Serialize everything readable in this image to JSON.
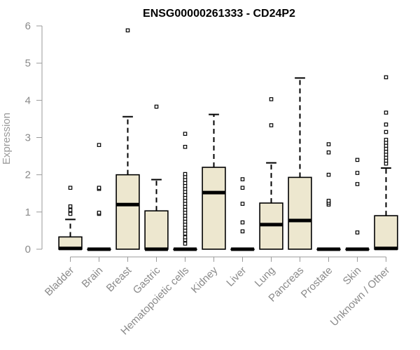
{
  "chart_data": {
    "type": "boxplot",
    "title": "ENSG00000261333 - CD24P2",
    "ylabel": "Expression",
    "xlabel": "",
    "ylim": [
      0,
      6
    ],
    "yticks": [
      0,
      1,
      2,
      3,
      4,
      5,
      6
    ],
    "categories": [
      "Bladder",
      "Brain",
      "Breast",
      "Gastric",
      "Hematopoietic cells",
      "Kidney",
      "Liver",
      "Lung",
      "Pancreas",
      "Prostate",
      "Skin",
      "Unknown / Other"
    ],
    "boxes": [
      {
        "category": "Bladder",
        "whisker_low": 0,
        "q1": 0,
        "median": 0.02,
        "q3": 0.33,
        "whisker_high": 0.8,
        "outliers": [
          0.95,
          1.05,
          1.15,
          1.65
        ]
      },
      {
        "category": "Brain",
        "whisker_low": 0,
        "q1": 0,
        "median": 0,
        "q3": 0,
        "whisker_high": 0,
        "outliers": [
          0.95,
          0.98,
          1.62,
          1.65,
          2.8
        ]
      },
      {
        "category": "Breast",
        "whisker_low": 0,
        "q1": 0,
        "median": 1.2,
        "q3": 2.0,
        "whisker_high": 3.56,
        "outliers": [
          5.88
        ]
      },
      {
        "category": "Gastric",
        "whisker_low": 0,
        "q1": 0,
        "median": 0,
        "q3": 1.03,
        "whisker_high": 1.87,
        "outliers": [
          3.83
        ]
      },
      {
        "category": "Hematopoietic cells",
        "whisker_low": 0,
        "q1": 0,
        "median": 0,
        "q3": 0,
        "whisker_high": 0,
        "outliers": [
          0.15,
          0.25,
          0.32,
          0.42,
          0.5,
          0.58,
          0.66,
          0.74,
          0.82,
          0.9,
          0.98,
          1.06,
          1.14,
          1.22,
          1.3,
          1.38,
          1.46,
          1.54,
          1.62,
          1.7,
          1.78,
          1.86,
          1.94,
          2.02,
          2.75,
          3.1
        ]
      },
      {
        "category": "Kidney",
        "whisker_low": 0,
        "q1": 0,
        "median": 1.52,
        "q3": 2.2,
        "whisker_high": 3.62,
        "outliers": []
      },
      {
        "category": "Liver",
        "whisker_low": 0,
        "q1": 0,
        "median": 0,
        "q3": 0,
        "whisker_high": 0,
        "outliers": [
          0.48,
          0.72,
          1.22,
          1.65,
          1.88
        ]
      },
      {
        "category": "Lung",
        "whisker_low": 0,
        "q1": 0,
        "median": 0.66,
        "q3": 1.24,
        "whisker_high": 2.32,
        "outliers": [
          3.33,
          4.03
        ]
      },
      {
        "category": "Pancreas",
        "whisker_low": 0,
        "q1": 0,
        "median": 0.77,
        "q3": 1.93,
        "whisker_high": 4.6,
        "outliers": []
      },
      {
        "category": "Prostate",
        "whisker_low": 0,
        "q1": 0,
        "median": 0,
        "q3": 0,
        "whisker_high": 0,
        "outliers": [
          1.2,
          1.25,
          1.3,
          2.0,
          2.6,
          2.82
        ]
      },
      {
        "category": "Skin",
        "whisker_low": 0,
        "q1": 0,
        "median": 0,
        "q3": 0,
        "whisker_high": 0,
        "outliers": [
          0.45,
          1.75,
          2.05,
          2.4
        ]
      },
      {
        "category": "Unknown / Other",
        "whisker_low": 0,
        "q1": 0,
        "median": 0.02,
        "q3": 0.9,
        "whisker_high": 2.18,
        "outliers": [
          2.3,
          2.38,
          2.46,
          2.54,
          2.62,
          2.7,
          2.78,
          2.86,
          2.94,
          3.15,
          3.35,
          3.67,
          4.62
        ]
      }
    ],
    "grid": false,
    "legend": "none",
    "colors": {
      "box_fill": "#ede7cf",
      "box_stroke": "#000000",
      "axis": "#9a9a9a",
      "tick_text": "#8a8a8a",
      "title_text": "#000000"
    }
  }
}
